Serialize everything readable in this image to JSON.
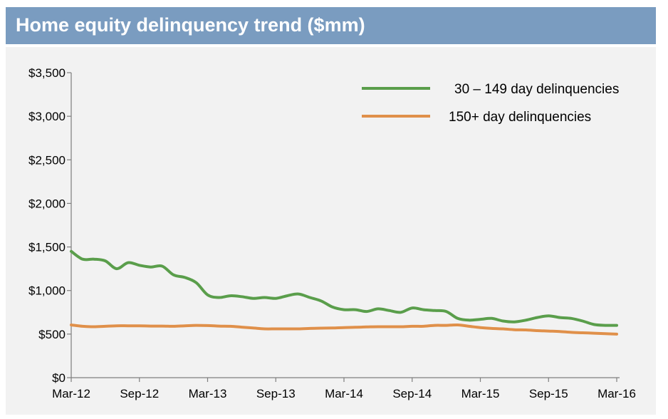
{
  "chart_data": {
    "type": "line",
    "title": "Home equity delinquency trend ($mm)",
    "xlabel": "",
    "ylabel": "",
    "ylim": [
      0,
      3500
    ],
    "y_ticks": [
      "$0",
      "$500",
      "$1,000",
      "$1,500",
      "$2,000",
      "$2,500",
      "$3,000",
      "$3,500"
    ],
    "y_tick_values": [
      0,
      500,
      1000,
      1500,
      2000,
      2500,
      3000,
      3500
    ],
    "x_ticks": [
      "Mar-12",
      "Sep-12",
      "Mar-13",
      "Sep-13",
      "Mar-14",
      "Sep-14",
      "Mar-15",
      "Sep-15",
      "Mar-16"
    ],
    "grid": false,
    "legend_position": "top-right",
    "x": [
      "Mar-12",
      "Apr-12",
      "May-12",
      "Jun-12",
      "Jul-12",
      "Aug-12",
      "Sep-12",
      "Oct-12",
      "Nov-12",
      "Dec-12",
      "Jan-13",
      "Feb-13",
      "Mar-13",
      "Apr-13",
      "May-13",
      "Jun-13",
      "Jul-13",
      "Aug-13",
      "Sep-13",
      "Oct-13",
      "Nov-13",
      "Dec-13",
      "Jan-14",
      "Feb-14",
      "Mar-14",
      "Apr-14",
      "May-14",
      "Jun-14",
      "Jul-14",
      "Aug-14",
      "Sep-14",
      "Oct-14",
      "Nov-14",
      "Dec-14",
      "Jan-15",
      "Feb-15",
      "Mar-15",
      "Apr-15",
      "May-15",
      "Jun-15",
      "Jul-15",
      "Aug-15",
      "Sep-15",
      "Oct-15",
      "Nov-15",
      "Dec-15",
      "Jan-16",
      "Feb-16",
      "Mar-16"
    ],
    "series": [
      {
        "name": "30 – 149 day delinquencies",
        "color": "#5a9e4b",
        "values": [
          1450,
          1360,
          1360,
          1340,
          1250,
          1320,
          1290,
          1270,
          1280,
          1180,
          1150,
          1090,
          950,
          920,
          940,
          930,
          910,
          920,
          910,
          940,
          960,
          920,
          880,
          810,
          780,
          780,
          760,
          790,
          770,
          750,
          800,
          780,
          770,
          760,
          680,
          660,
          670,
          680,
          650,
          640,
          660,
          690,
          710,
          690,
          680,
          650,
          610,
          600,
          600
        ]
      },
      {
        "name": "150+ day delinquencies",
        "color": "#e0904a",
        "values": [
          605,
          590,
          585,
          590,
          595,
          595,
          595,
          592,
          592,
          590,
          595,
          600,
          598,
          592,
          590,
          580,
          570,
          560,
          560,
          560,
          560,
          565,
          568,
          570,
          575,
          578,
          582,
          585,
          585,
          585,
          590,
          590,
          600,
          600,
          605,
          590,
          575,
          565,
          560,
          550,
          548,
          540,
          535,
          530,
          520,
          515,
          510,
          505,
          500
        ]
      }
    ]
  }
}
